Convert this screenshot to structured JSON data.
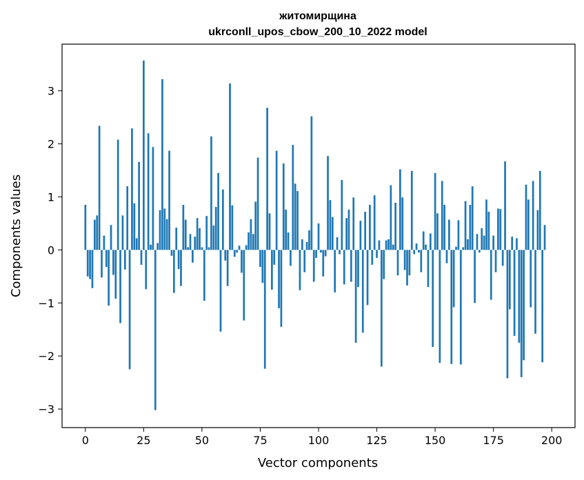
{
  "chart_data": {
    "type": "bar",
    "title": "житомирщина",
    "subtitle": "ukrconll_upos_cbow_200_10_2022 model",
    "xlabel": "Vector components",
    "ylabel": "Components values",
    "xlim": [
      -10,
      210
    ],
    "ylim": [
      -3.35,
      3.88
    ],
    "xticks": [
      0,
      25,
      50,
      75,
      100,
      125,
      150,
      175,
      200
    ],
    "yticks": [
      -3,
      -2,
      -1,
      0,
      1,
      2,
      3
    ],
    "xtick_labels": [
      "0",
      "25",
      "50",
      "75",
      "100",
      "125",
      "150",
      "175",
      "200"
    ],
    "ytick_labels": [
      "−3",
      "−2",
      "−1",
      "0",
      "1",
      "2",
      "3"
    ],
    "grid": false,
    "bar_color": "#1f77b4",
    "values": [
      0.85,
      -0.5,
      -0.55,
      -0.72,
      0.57,
      0.65,
      2.34,
      -0.52,
      0.27,
      -0.32,
      -1.05,
      0.47,
      -0.47,
      -0.92,
      2.08,
      -1.38,
      0.65,
      -0.37,
      1.2,
      -2.25,
      2.29,
      0.88,
      0.22,
      1.66,
      -0.28,
      3.57,
      -0.74,
      2.2,
      0.1,
      1.94,
      -3.02,
      0.13,
      0.75,
      3.22,
      0.78,
      0.58,
      1.87,
      -0.11,
      -0.81,
      0.42,
      -0.36,
      -0.68,
      0.85,
      0.57,
      0.05,
      0.3,
      -0.24,
      0.25,
      0.6,
      0.41,
      0.05,
      -0.96,
      0.64,
      0.05,
      2.14,
      0.46,
      0.81,
      1.45,
      -1.54,
      1.14,
      -0.2,
      -0.68,
      3.14,
      0.84,
      -0.13,
      -0.05,
      0.08,
      -0.43,
      -1.33,
      0.09,
      0.33,
      0.58,
      0.3,
      0.91,
      1.74,
      -0.32,
      -0.62,
      -2.24,
      2.68,
      0.69,
      -0.75,
      -0.28,
      1.87,
      -1.1,
      -1.45,
      1.63,
      0.76,
      0.33,
      -0.3,
      1.98,
      1.25,
      1.11,
      -0.76,
      0.2,
      -0.42,
      0.15,
      0.37,
      2.52,
      -0.6,
      -0.15,
      0.5,
      -0.05,
      -0.5,
      -0.12,
      1.77,
      0.94,
      0.62,
      -0.8,
      0.24,
      -0.08,
      1.32,
      -0.65,
      0.6,
      0.76,
      -0.6,
      0.99,
      -1.75,
      -0.7,
      0.55,
      -1.56,
      0.72,
      -1.04,
      0.85,
      -0.28,
      1.03,
      -0.15,
      0.18,
      -2.2,
      -0.55,
      0.18,
      0.2,
      1.22,
      0.1,
      0.89,
      -0.48,
      1.52,
      0.99,
      -0.38,
      -0.67,
      -0.48,
      1.49,
      -0.08,
      0.12,
      -0.05,
      -0.42,
      0.35,
      0.1,
      -0.7,
      0.31,
      -1.83,
      1.45,
      0.69,
      -2.13,
      1.3,
      0.85,
      -0.25,
      0.57,
      -2.15,
      -1.08,
      0.06,
      0.56,
      -2.16,
      0.05,
      0.92,
      0.2,
      0.85,
      1.2,
      -1.0,
      0.3,
      -0.05,
      0.41,
      0.27,
      0.95,
      0.72,
      -0.94,
      0.27,
      -0.42,
      0.78,
      0.77,
      -0.3,
      1.67,
      -2.42,
      -1.12,
      0.25,
      -1.62,
      0.22,
      -1.75,
      -2.4,
      -2.08,
      1.23,
      0.95,
      -1.08,
      1.3,
      -1.58,
      0.75,
      1.49,
      -2.12,
      0.47
    ]
  }
}
